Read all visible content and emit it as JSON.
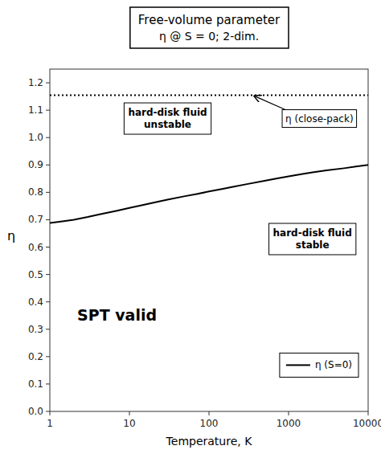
{
  "chart_data": {
    "type": "line",
    "title": "Free-volume parameter",
    "subtitle": "η @ S = 0;  2-dim.",
    "x_label": "Temperature, K",
    "y_label": "η",
    "log": "x",
    "grid": false,
    "legend": "lower right",
    "xlim": [
      1,
      10000
    ],
    "ylim": [
      0.0,
      1.25
    ],
    "xticks": [
      1,
      10,
      100,
      1000,
      10000
    ],
    "yticks": [
      {
        "value": 0.0,
        "label": "0.0"
      },
      0.1,
      0.2,
      0.3,
      0.4,
      0.5,
      0.6,
      0.7,
      0.8,
      0.9,
      {
        "value": 1.0,
        "label": "1.0"
      },
      1.1,
      1.2
    ],
    "x": [
      1,
      1.5,
      2,
      3,
      4,
      5,
      7,
      10,
      15,
      20,
      30,
      50,
      70,
      100,
      150,
      200,
      300,
      500,
      700,
      1000,
      1500,
      2000,
      3000,
      5000,
      7000,
      10000
    ],
    "series": [
      {
        "name": "η (S=0)",
        "color": "#000000",
        "values": [
          0.688,
          0.695,
          0.7,
          0.71,
          0.718,
          0.724,
          0.733,
          0.743,
          0.754,
          0.762,
          0.773,
          0.786,
          0.794,
          0.803,
          0.813,
          0.82,
          0.83,
          0.842,
          0.85,
          0.858,
          0.867,
          0.873,
          0.88,
          0.888,
          0.894,
          0.9
        ]
      }
    ],
    "reference_line": {
      "value": 1.155,
      "label": "η (close-pack)",
      "color": "#000000",
      "line_style": "dotted"
    },
    "annotations": [
      "hard-disk fluid\nunstable",
      "hard-disk fluid\nstable",
      "SPT valid"
    ]
  }
}
